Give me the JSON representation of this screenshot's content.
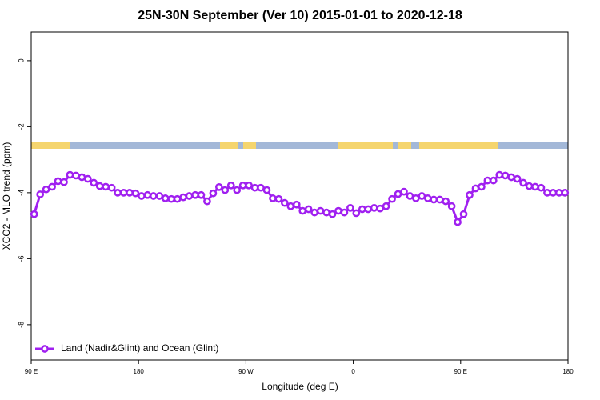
{
  "chart_data": {
    "type": "line",
    "title": "25N-30N September (Ver 10)   2015-01-01 to 2020-12-18",
    "xlabel": "Longitude (deg E)",
    "ylabel": "XCO2 - MLO trend (ppm)",
    "x": [
      92.5,
      97.5,
      102.5,
      107.5,
      112.5,
      117.5,
      122.5,
      127.5,
      132.5,
      137.5,
      142.5,
      147.5,
      152.5,
      157.5,
      162.5,
      167.5,
      172.5,
      177.5,
      182.5,
      187.5,
      192.5,
      197.5,
      202.5,
      207.5,
      212.5,
      217.5,
      222.5,
      227.5,
      232.5,
      237.5,
      242.5,
      247.5,
      252.5,
      257.5,
      262.5,
      267.5,
      272.5,
      277.5,
      282.5,
      287.5,
      292.5,
      297.5,
      302.5,
      307.5,
      312.5,
      317.5,
      322.5,
      327.5,
      332.5,
      337.5,
      342.5,
      347.5,
      352.5,
      357.5,
      362.5,
      367.5,
      372.5,
      377.5,
      382.5,
      387.5,
      392.5,
      397.5,
      402.5,
      407.5,
      412.5,
      417.5,
      422.5,
      427.5,
      432.5,
      437.5,
      442.5,
      447.5,
      452.5,
      457.5,
      462.5,
      467.5,
      472.5,
      477.5,
      482.5,
      487.5,
      492.5,
      497.5,
      502.5,
      507.5,
      512.5,
      517.5,
      522.5,
      527.5,
      532.5,
      537.5
    ],
    "series": [
      {
        "name": "Land (Nadir&Glint) and Ocean (Glint)",
        "color": "#a020f0",
        "values": [
          -4.65,
          -4.05,
          -3.9,
          -3.82,
          -3.65,
          -3.68,
          -3.46,
          -3.48,
          -3.53,
          -3.58,
          -3.7,
          -3.8,
          -3.82,
          -3.85,
          -4.0,
          -4.0,
          -4.0,
          -4.02,
          -4.1,
          -4.07,
          -4.1,
          -4.1,
          -4.17,
          -4.19,
          -4.19,
          -4.14,
          -4.1,
          -4.07,
          -4.07,
          -4.26,
          -4.02,
          -3.83,
          -3.92,
          -3.78,
          -3.92,
          -3.78,
          -3.78,
          -3.85,
          -3.85,
          -3.92,
          -4.17,
          -4.19,
          -4.31,
          -4.41,
          -4.36,
          -4.55,
          -4.5,
          -4.6,
          -4.55,
          -4.6,
          -4.65,
          -4.55,
          -4.6,
          -4.46,
          -4.62,
          -4.5,
          -4.5,
          -4.46,
          -4.48,
          -4.41,
          -4.19,
          -4.04,
          -3.97,
          -4.1,
          -4.17,
          -4.1,
          -4.17,
          -4.21,
          -4.21,
          -4.26,
          -4.41,
          -4.89,
          -4.65,
          -4.07,
          -3.87,
          -3.82,
          -3.63,
          -3.63,
          -3.46,
          -3.48,
          -3.53,
          -3.58,
          -3.7,
          -3.8,
          -3.82,
          -3.85,
          -4.0,
          -4.0,
          -4.0,
          -4.0
        ]
      }
    ],
    "xlim": [
      90,
      540
    ],
    "xticks": [
      {
        "value": 90,
        "label": "90 E"
      },
      {
        "value": 180,
        "label": "180"
      },
      {
        "value": 270,
        "label": "90 W"
      },
      {
        "value": 360,
        "label": "0"
      },
      {
        "value": 450,
        "label": "90 E"
      },
      {
        "value": 540,
        "label": "180"
      }
    ],
    "ylim": [
      -9.07,
      0.87
    ],
    "yticks": [
      0,
      -2,
      -4,
      -6,
      -8
    ],
    "grid": false,
    "legend": "bottom left"
  }
}
